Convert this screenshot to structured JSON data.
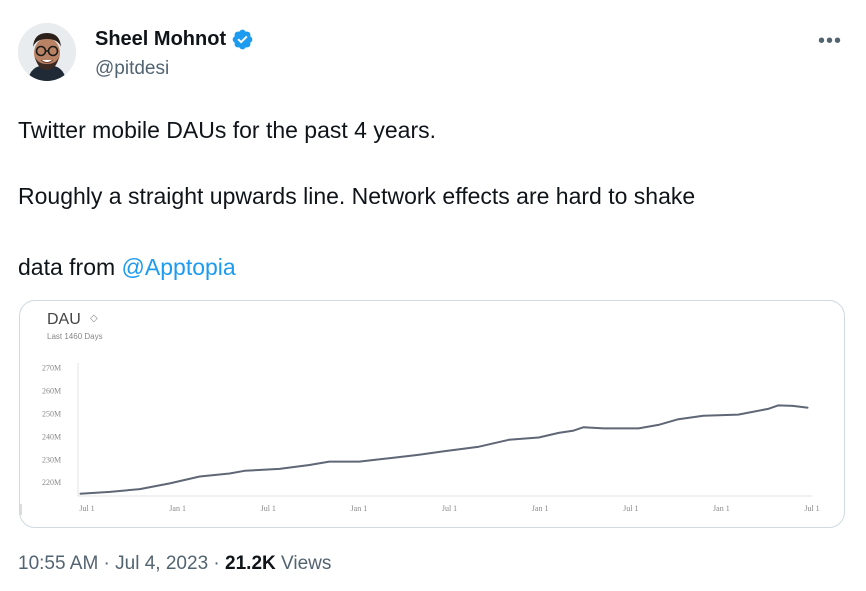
{
  "tweet": {
    "author_name": "Sheel Mohnot",
    "author_handle": "@pitdesi",
    "more_label": "•••",
    "line1": "Twitter mobile DAUs for the past 4 years.",
    "line2": "Roughly a straight upwards line. Network effects are hard to shake",
    "line3_prefix": "data from ",
    "line3_mention": "@Apptopia",
    "time": "10:55 AM",
    "sep1": " · ",
    "date": "Jul 4, 2023",
    "sep2": " · ",
    "views_count": "21.2K",
    "views_label": " Views"
  },
  "card": {
    "title": "DAU",
    "sort_icon": "◇",
    "subtitle": "Last 1460 Days"
  },
  "chart_data": {
    "type": "line",
    "title": "DAU",
    "subtitle": "Last 1460 Days",
    "y_ticks": [
      "220M",
      "230M",
      "240M",
      "250M",
      "260M",
      "270M"
    ],
    "y_tick_values": [
      220,
      230,
      240,
      250,
      260,
      270
    ],
    "x_ticks": [
      "Jul 1",
      "Jan 1",
      "Jul 1",
      "Jan 1",
      "Jul 1",
      "Jan 1",
      "Jul 1",
      "Jan 1",
      "Jul 1"
    ],
    "ylim": [
      214,
      272
    ],
    "xlim": [
      0,
      1460
    ],
    "series": [
      {
        "values": [
          [
            0,
            215.0
          ],
          [
            60,
            215.8
          ],
          [
            120,
            217.0
          ],
          [
            180,
            219.5
          ],
          [
            240,
            222.5
          ],
          [
            300,
            223.8
          ],
          [
            330,
            225.0
          ],
          [
            400,
            225.8
          ],
          [
            460,
            227.5
          ],
          [
            500,
            229.0
          ],
          [
            560,
            229.0
          ],
          [
            620,
            230.5
          ],
          [
            680,
            232.0
          ],
          [
            730,
            233.5
          ],
          [
            800,
            235.5
          ],
          [
            860,
            238.5
          ],
          [
            920,
            239.5
          ],
          [
            960,
            241.5
          ],
          [
            990,
            242.5
          ],
          [
            1010,
            244.0
          ],
          [
            1050,
            243.5
          ],
          [
            1120,
            243.5
          ],
          [
            1160,
            245.0
          ],
          [
            1200,
            247.5
          ],
          [
            1250,
            249.0
          ],
          [
            1320,
            249.5
          ],
          [
            1380,
            252.0
          ],
          [
            1400,
            253.5
          ],
          [
            1430,
            253.3
          ],
          [
            1460,
            252.5
          ]
        ]
      }
    ]
  }
}
